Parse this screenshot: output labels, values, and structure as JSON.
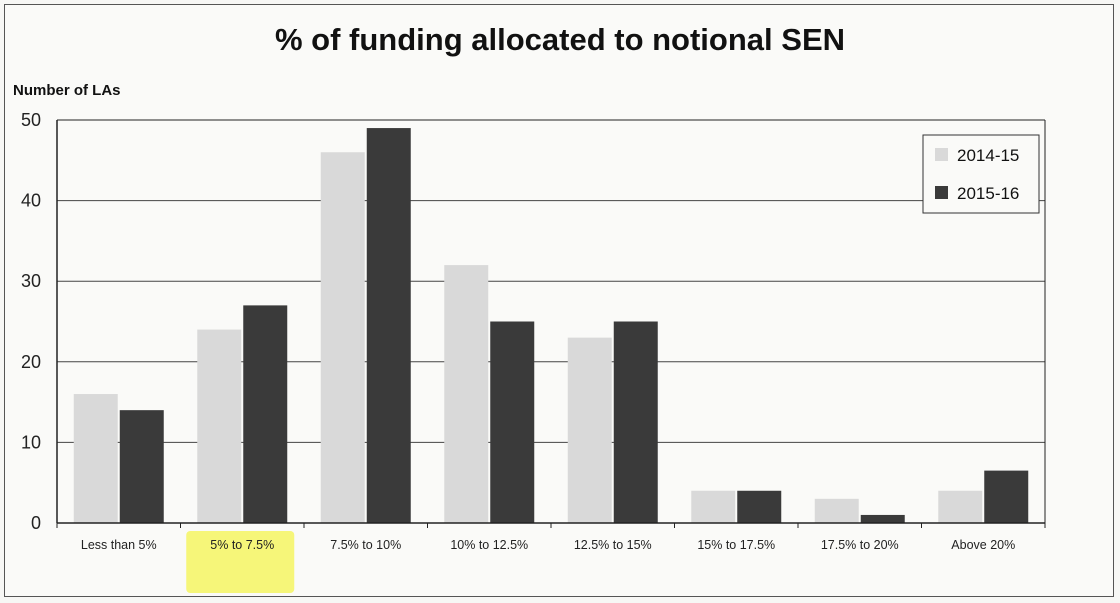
{
  "chart_data": {
    "type": "bar",
    "title": "% of funding allocated to notional SEN",
    "xlabel": "",
    "ylabel": "Number of LAs",
    "ylim": [
      0,
      50
    ],
    "yticks": [
      0,
      10,
      20,
      30,
      40,
      50
    ],
    "grid": true,
    "legend_position": "top-right",
    "categories": [
      "Less than 5%",
      "5% to 7.5%",
      "7.5% to 10%",
      "10% to 12.5%",
      "12.5% to 15%",
      "15% to 17.5%",
      "17.5% to 20%",
      "Above 20%"
    ],
    "highlighted_category": "5% to 7.5%",
    "series": [
      {
        "name": "2014-15",
        "color": "#d9d9d9",
        "values": [
          16,
          24,
          46,
          32,
          23,
          4,
          3,
          4
        ]
      },
      {
        "name": "2015-16",
        "color": "#3a3a3a",
        "values": [
          14,
          27,
          49,
          25,
          25,
          4,
          1,
          6.5
        ]
      }
    ]
  },
  "colors": {
    "highlight": "#f5f56a",
    "grid": "#444444",
    "axis": "#222222"
  }
}
